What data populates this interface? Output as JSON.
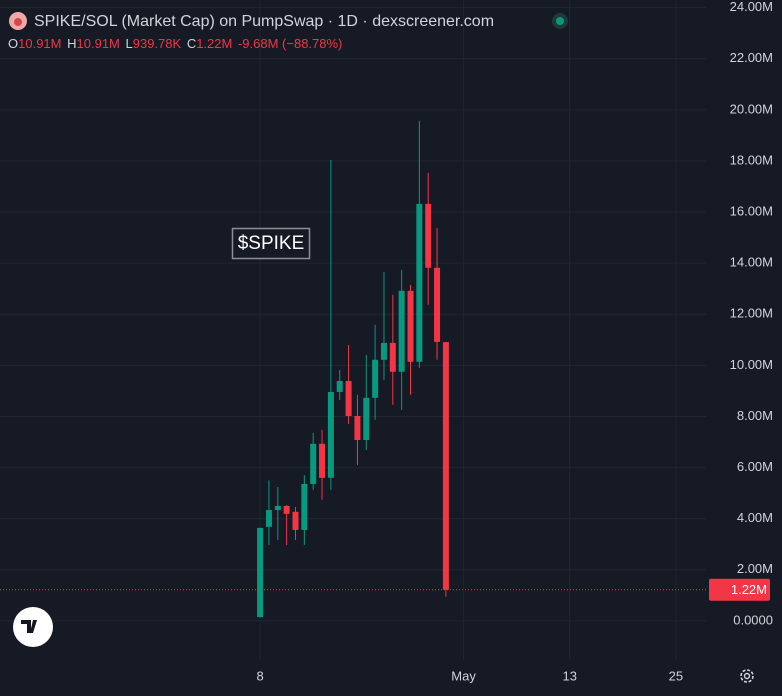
{
  "chart_data": {
    "type": "candlestick",
    "title": "SPIKE/SOL (Market Cap) on PumpSwap · 1D · dexscreener.com",
    "legend": [
      {
        "label": "O",
        "value": "10.91M"
      },
      {
        "label": "H",
        "value": "10.91M"
      },
      {
        "label": "L",
        "value": "939.78K"
      },
      {
        "label": "C",
        "value": "1.22M"
      }
    ],
    "change": "-9.68M (−88.78%)",
    "annotation": "$SPIKE",
    "last_price": {
      "value": 1.22,
      "label": "1.22M"
    },
    "up_color": "#089981",
    "down_color": "#f23645",
    "grid": true,
    "x": [
      8,
      9,
      10,
      11,
      12,
      13,
      14,
      15,
      16,
      17,
      18,
      19,
      20,
      21,
      22,
      23,
      24,
      25,
      26,
      27,
      28,
      29
    ],
    "series": [
      {
        "name": "open",
        "values": [
          0.15,
          3.68,
          4.34,
          4.5,
          4.27,
          3.56,
          5.36,
          6.93,
          5.6,
          8.96,
          9.39,
          8.02,
          7.08,
          8.73,
          10.22,
          10.88,
          9.75,
          12.92,
          10.14,
          16.32,
          13.82,
          10.91
        ]
      },
      {
        "name": "high",
        "values": [
          3.65,
          5.5,
          5.24,
          4.54,
          4.46,
          5.71,
          7.36,
          7.48,
          18.04,
          9.82,
          10.8,
          8.85,
          10.41,
          11.59,
          13.66,
          12.76,
          13.74,
          13.15,
          19.57,
          17.53,
          15.38,
          10.91
        ]
      },
      {
        "name": "low",
        "values": [
          0.13,
          2.97,
          3.17,
          2.97,
          3.17,
          2.97,
          5.13,
          4.74,
          5.13,
          8.65,
          7.71,
          6.1,
          6.69,
          7.87,
          9.43,
          8.45,
          8.26,
          8.85,
          9.9,
          12.37,
          10.22,
          0.93978
        ]
      },
      {
        "name": "close",
        "values": [
          3.64,
          4.34,
          4.5,
          4.19,
          3.56,
          5.36,
          6.93,
          5.6,
          8.96,
          9.39,
          8.02,
          7.08,
          8.73,
          10.22,
          10.88,
          9.75,
          12.92,
          10.14,
          16.32,
          13.82,
          10.92,
          1.22
        ]
      }
    ],
    "xlim": [
      -21.4,
      58.4
    ],
    "xticks": [
      {
        "value": 8,
        "label": "8"
      },
      {
        "value": 31,
        "label": "May"
      },
      {
        "value": 43,
        "label": "13"
      },
      {
        "value": 55,
        "label": "25"
      }
    ],
    "ylim": [
      -1.53,
      24.3
    ],
    "yticks": [
      {
        "value": 0,
        "label": "0.0000"
      },
      {
        "value": 2,
        "label": "2.00M"
      },
      {
        "value": 4,
        "label": "4.00M"
      },
      {
        "value": 6,
        "label": "6.00M"
      },
      {
        "value": 8,
        "label": "8.00M"
      },
      {
        "value": 10,
        "label": "10.00M"
      },
      {
        "value": 12,
        "label": "12.00M"
      },
      {
        "value": 14,
        "label": "14.00M"
      },
      {
        "value": 16,
        "label": "16.00M"
      },
      {
        "value": 18,
        "label": "18.00M"
      },
      {
        "value": 20,
        "label": "20.00M"
      },
      {
        "value": 22,
        "label": "22.00M"
      },
      {
        "value": 24,
        "label": "24.00M"
      }
    ]
  }
}
